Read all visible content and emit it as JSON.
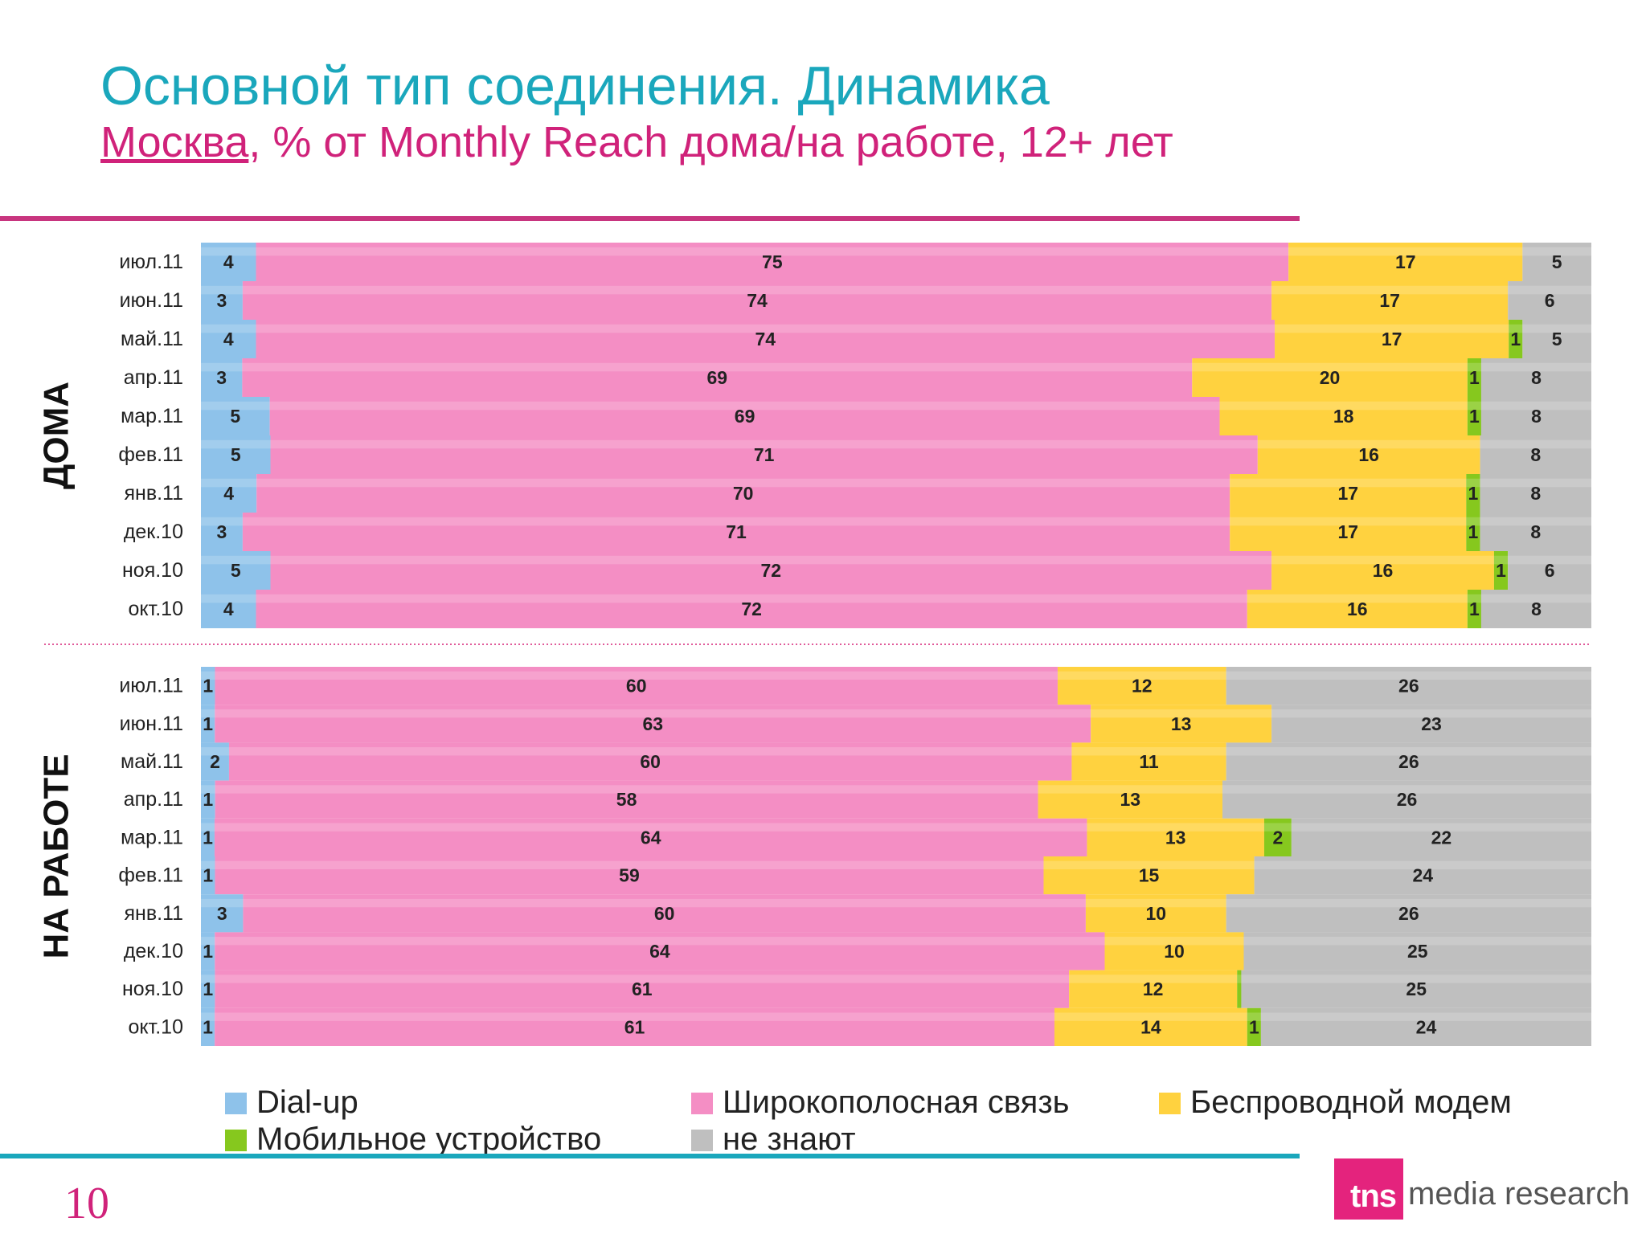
{
  "title": "Основной тип соединения. Динамика",
  "subtitle": {
    "city": "Москва",
    "rest": ", % от Monthly Reach дома/на работе, 12+ лет"
  },
  "page_number": "10",
  "logo": {
    "badge": "tns",
    "text": "media research"
  },
  "colors": {
    "dialup": "#8EC2EA",
    "broadband": "#F48EC4",
    "wireless": "#FFD23F",
    "mobile": "#86C81E",
    "dontknow": "#BFBFBF",
    "title": "#1AA7BC",
    "subtitle": "#D0227A"
  },
  "legend": [
    {
      "key": "dialup",
      "label": "Dial-up"
    },
    {
      "key": "broadband",
      "label": "Широкополосная связь"
    },
    {
      "key": "wireless",
      "label": "Беспроводной модем"
    },
    {
      "key": "mobile",
      "label": "Мобильное устройство"
    },
    {
      "key": "dontknow",
      "label": "не знают"
    }
  ],
  "chart_data": [
    {
      "type": "bar",
      "orientation": "horizontal",
      "stacked": "percent",
      "panel_label": "ДОМА",
      "categories": [
        "июл.11",
        "июн.11",
        "май.11",
        "апр.11",
        "мар.11",
        "фев.11",
        "янв.11",
        "дек.10",
        "ноя.10",
        "окт.10"
      ],
      "series": [
        {
          "name": "Dial-up",
          "key": "dialup",
          "values": [
            4,
            3,
            4,
            3,
            5,
            5,
            4,
            3,
            5,
            4
          ]
        },
        {
          "name": "Широкополосная связь",
          "key": "broadband",
          "values": [
            75,
            74,
            74,
            69,
            69,
            71,
            70,
            71,
            72,
            72
          ]
        },
        {
          "name": "Беспроводной модем",
          "key": "wireless",
          "values": [
            17,
            17,
            17,
            20,
            18,
            16,
            17,
            17,
            16,
            16
          ]
        },
        {
          "name": "Мобильное устройство",
          "key": "mobile",
          "values": [
            0,
            0,
            1,
            1,
            1,
            0,
            1,
            1,
            1,
            1
          ],
          "labels": [
            "",
            "",
            "1",
            "1",
            "1",
            "",
            "1",
            "1",
            "1",
            "1"
          ]
        },
        {
          "name": "не знают",
          "key": "dontknow",
          "values": [
            5,
            6,
            5,
            8,
            8,
            8,
            8,
            8,
            6,
            8
          ]
        }
      ]
    },
    {
      "type": "bar",
      "orientation": "horizontal",
      "stacked": "percent",
      "panel_label": "НА РАБОТЕ",
      "categories": [
        "июл.11",
        "июн.11",
        "май.11",
        "апр.11",
        "мар.11",
        "фев.11",
        "янв.11",
        "дек.10",
        "ноя.10",
        "окт.10"
      ],
      "series": [
        {
          "name": "Dial-up",
          "key": "dialup",
          "values": [
            1,
            1,
            2,
            1,
            1,
            1,
            3,
            1,
            1,
            1
          ]
        },
        {
          "name": "Широкополосная связь",
          "key": "broadband",
          "values": [
            60,
            63,
            60,
            58,
            64,
            59,
            60,
            64,
            61,
            61
          ]
        },
        {
          "name": "Беспроводной модем",
          "key": "wireless",
          "values": [
            12,
            13,
            11,
            13,
            13,
            15,
            10,
            10,
            12,
            14
          ]
        },
        {
          "name": "Мобильное устройство",
          "key": "mobile",
          "values": [
            0,
            0,
            0,
            0,
            2,
            0,
            0,
            0,
            0.3,
            1
          ],
          "labels": [
            "",
            "",
            "",
            "",
            "2",
            "",
            "",
            "",
            "",
            "1"
          ]
        },
        {
          "name": "не знают",
          "key": "dontknow",
          "values": [
            26,
            23,
            26,
            26,
            22,
            24,
            26,
            25,
            25,
            24
          ]
        }
      ]
    }
  ]
}
